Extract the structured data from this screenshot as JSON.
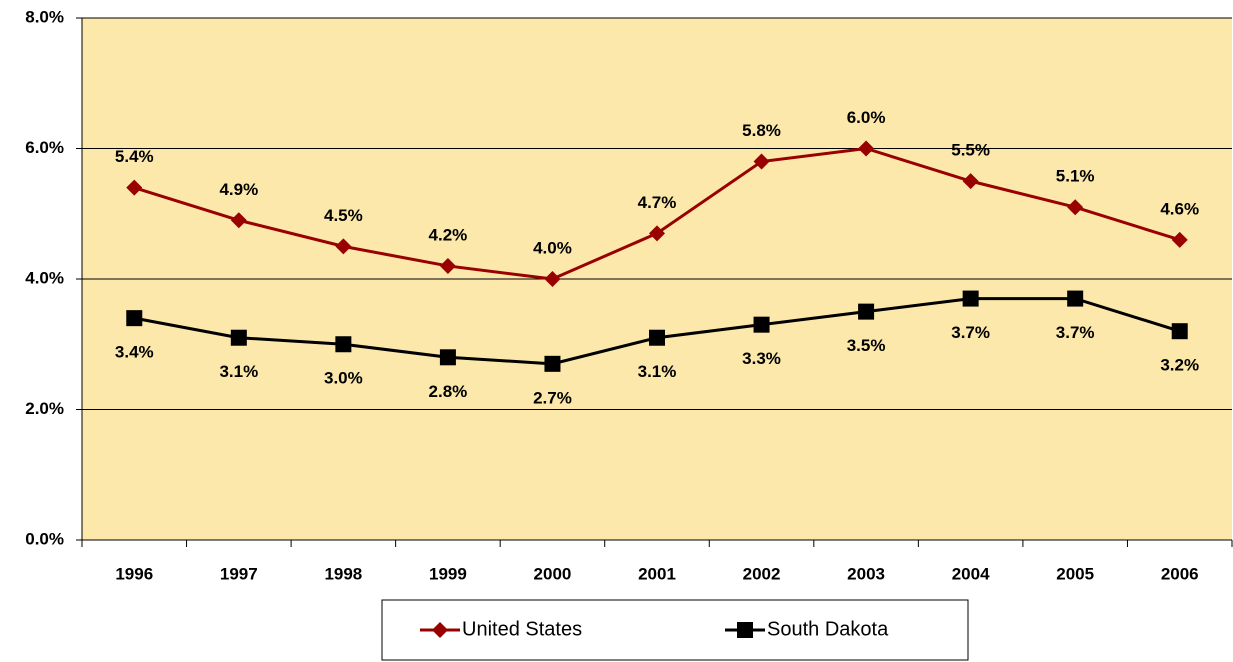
{
  "chart_data": {
    "type": "line",
    "categories": [
      "1996",
      "1997",
      "1998",
      "1999",
      "2000",
      "2001",
      "2002",
      "2003",
      "2004",
      "2005",
      "2006"
    ],
    "series": [
      {
        "name": "United States",
        "color": "#990000",
        "marker": "diamond",
        "values": [
          5.4,
          4.9,
          4.5,
          4.2,
          4.0,
          4.7,
          5.8,
          6.0,
          5.5,
          5.1,
          4.6
        ],
        "value_labels": [
          "5.4%",
          "4.9%",
          "4.5%",
          "4.2%",
          "4.0%",
          "4.7%",
          "5.8%",
          "6.0%",
          "5.5%",
          "5.1%",
          "4.6%"
        ]
      },
      {
        "name": "South Dakota",
        "color": "#000000",
        "marker": "square",
        "values": [
          3.4,
          3.1,
          3.0,
          2.8,
          2.7,
          3.1,
          3.3,
          3.5,
          3.7,
          3.7,
          3.2
        ],
        "value_labels": [
          "3.4%",
          "3.1%",
          "3.0%",
          "2.8%",
          "2.7%",
          "3.1%",
          "3.3%",
          "3.5%",
          "3.7%",
          "3.7%",
          "3.2%"
        ]
      }
    ],
    "ylim": [
      0,
      8
    ],
    "yticks": [
      {
        "value": 0,
        "label": "0.0%"
      },
      {
        "value": 2,
        "label": "2.0%"
      },
      {
        "value": 4,
        "label": "4.0%"
      },
      {
        "value": 6,
        "label": "6.0%"
      },
      {
        "value": 8,
        "label": "8.0%"
      }
    ],
    "grid": true,
    "legend": "bottom",
    "background": "#fbe8aa"
  }
}
